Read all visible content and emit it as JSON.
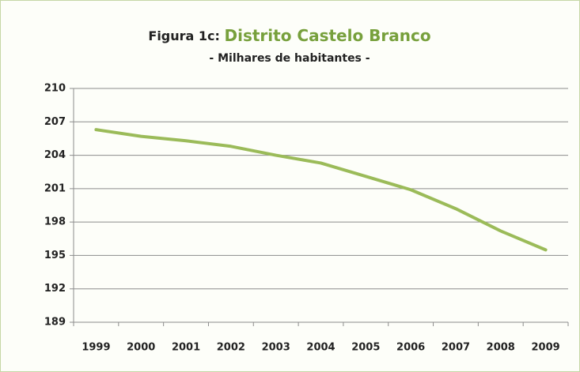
{
  "chart_data": {
    "type": "line",
    "title": "Figura 1c:",
    "title_highlight": "Distrito Castelo Branco",
    "subtitle": "- Milhares de habitantes -",
    "categories": [
      "1999",
      "2000",
      "2001",
      "2002",
      "2003",
      "2004",
      "2005",
      "2006",
      "2007",
      "2008",
      "2009"
    ],
    "series": [
      {
        "name": "Distrito Castelo Branco",
        "color": "#9bbb59",
        "values": [
          206.3,
          205.7,
          205.3,
          204.8,
          204.0,
          203.3,
          202.1,
          200.9,
          199.2,
          197.2,
          195.5
        ]
      }
    ],
    "ylim": [
      189,
      210
    ],
    "yticks": [
      189,
      192,
      195,
      198,
      201,
      204,
      207,
      210
    ],
    "grid": true
  }
}
